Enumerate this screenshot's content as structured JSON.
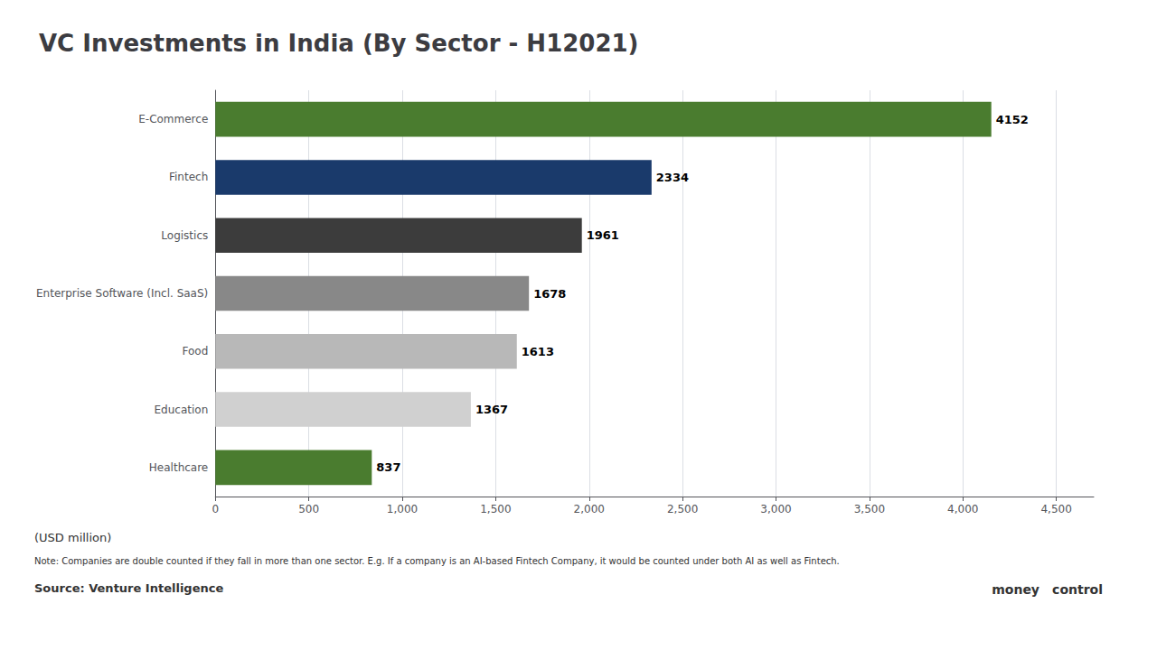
{
  "chart_data": {
    "type": "bar",
    "orientation": "horizontal",
    "title": "VC Investments in India (By Sector - H12021)",
    "xlabel": "(USD million)",
    "annotations": [
      "Note: Companies are double counted if they fall in more than one sector. E.g. If a company is an AI-based Fintech Company, it would be counted under both AI as well as Fintech.",
      "Source: Venture Intelligence",
      "money",
      "control"
    ],
    "categories": [
      "Healthcare",
      "Education",
      "Food",
      "Enterprise Software (Incl. SaaS)",
      "Logistics",
      "Fintech",
      "E-Commerce"
    ],
    "values": [
      837,
      1367,
      1613,
      1678,
      1961,
      2334,
      4152
    ],
    "colors": [
      "#4a7c2f",
      "#d0d0d0",
      "#b8b8b8",
      "#888888",
      "#3c3c3c",
      "#1a3a6b",
      "#4a7c2f"
    ],
    "xlim": [
      0,
      4700
    ],
    "xticks": [
      0,
      500,
      1000,
      1500,
      2000,
      2500,
      3000,
      3500,
      4000,
      4500
    ],
    "grid": true,
    "data_labels": true
  }
}
